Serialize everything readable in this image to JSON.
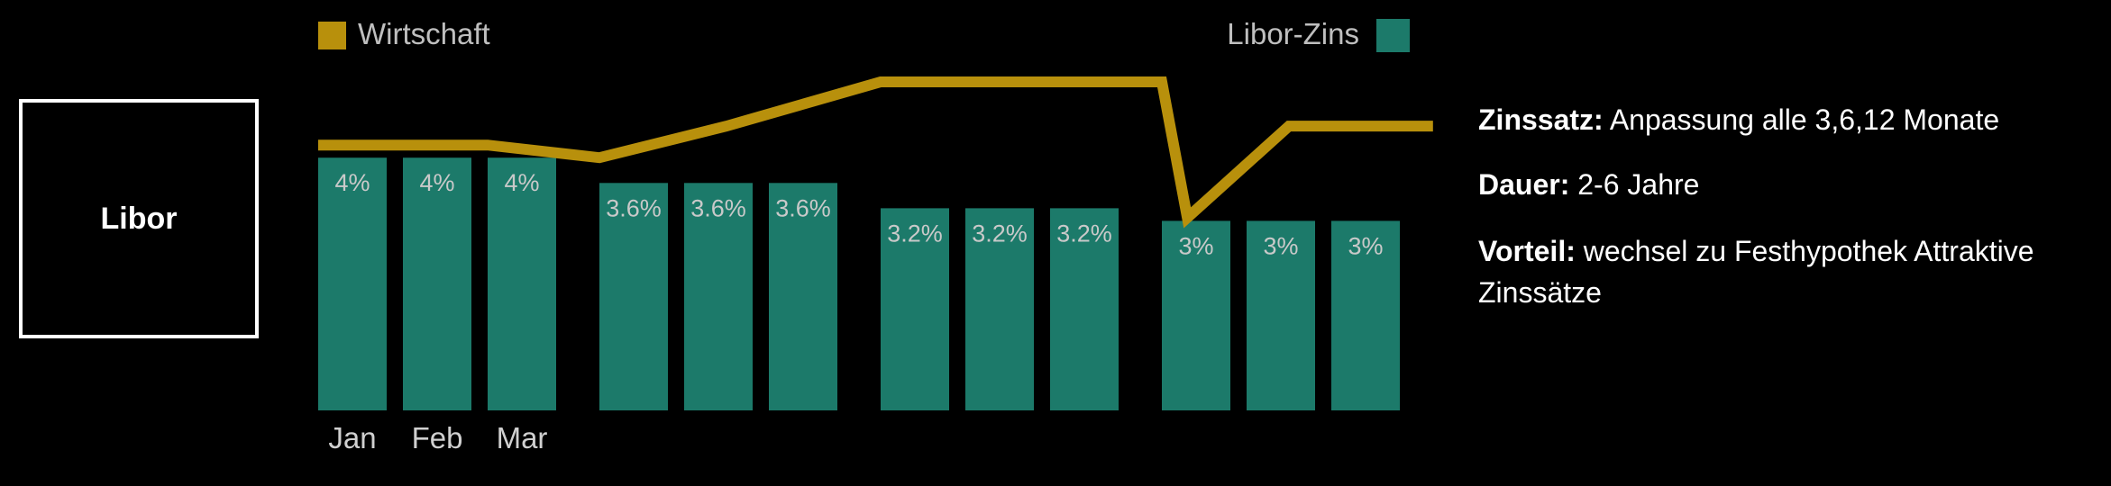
{
  "box_label": "Libor",
  "legend": {
    "line_label": "Wirtschaft",
    "bar_label": "Libor-Zins"
  },
  "info": {
    "rate_label": "Zinssatz:",
    "rate_text": "Anpassung alle 3,6,12 Monate",
    "duration_label": "Dauer:",
    "duration_text": "2-6 Jahre",
    "advantage_label": "Vorteil:",
    "advantage_text": "wechsel zu Festhypothek Attraktive Zinssätze"
  },
  "colors": {
    "background": "#000000",
    "bar": "#1c7a6a",
    "line": "#b8900c",
    "bar_label": "#c9c9c9",
    "axis_label": "#d0d0d0"
  },
  "chart_data": {
    "type": "bar",
    "title": "",
    "xlabel": "",
    "ylabel": "",
    "categories": [
      "Jan",
      "Feb",
      "Mar",
      "",
      "",
      "",
      "",
      "",
      "",
      "",
      "",
      ""
    ],
    "series": [
      {
        "name": "Libor-Zins",
        "values": [
          4,
          4,
          4,
          3.6,
          3.6,
          3.6,
          3.2,
          3.2,
          3.2,
          3,
          3,
          3
        ],
        "labels": [
          "4%",
          "4%",
          "4%",
          "3.6%",
          "3.6%",
          "3.6%",
          "3.2%",
          "3.2%",
          "3.2%",
          "3%",
          "3%",
          "3%"
        ]
      },
      {
        "name": "Wirtschaft",
        "type": "line",
        "points": [
          [
            0,
            4.2
          ],
          [
            2,
            4.2
          ],
          [
            3,
            4.0
          ],
          [
            4.5,
            4.5
          ],
          [
            6,
            5.2
          ],
          [
            9,
            5.2
          ],
          [
            9.3,
            3.05
          ],
          [
            10.5,
            4.5
          ],
          [
            12.2,
            4.5
          ]
        ]
      }
    ],
    "ylim": [
      0,
      5.2
    ],
    "grid": false,
    "legend_position": "top"
  }
}
